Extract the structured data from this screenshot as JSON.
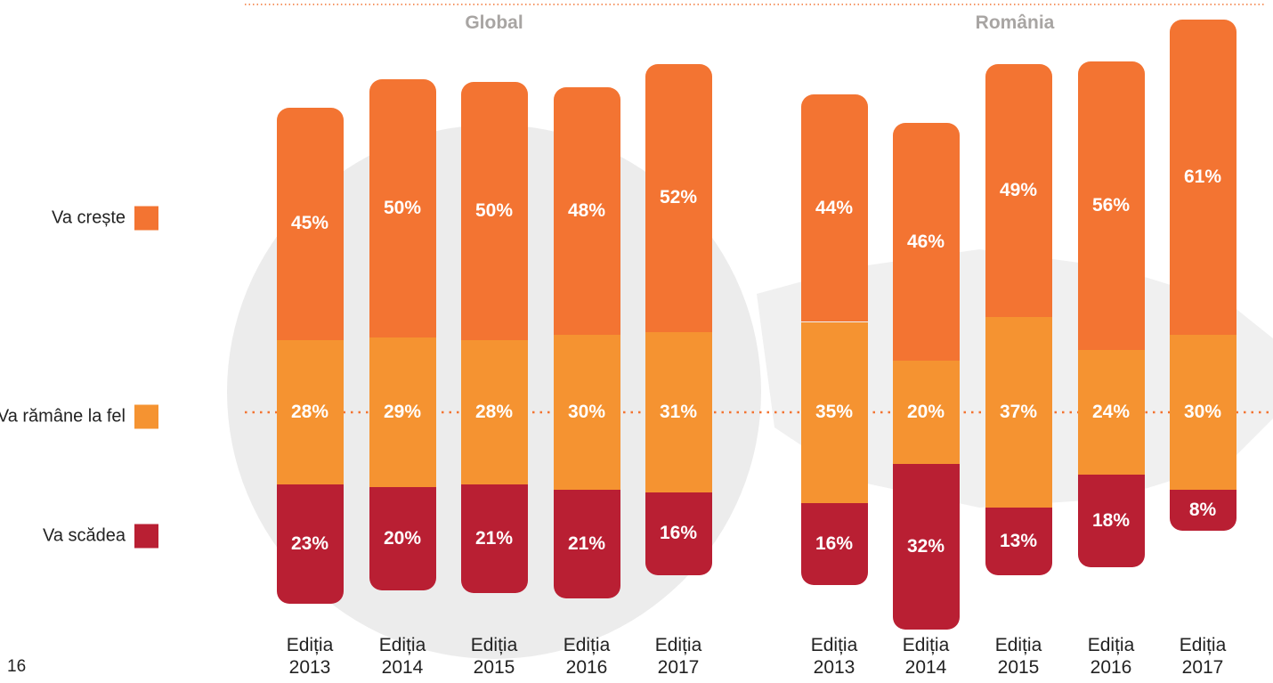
{
  "page_number": "16",
  "chart_data": [
    {
      "type": "bar",
      "stacked": true,
      "title": "Global",
      "categories": [
        "Ediția 2013",
        "Ediția 2014",
        "Ediția 2015",
        "Ediția 2016",
        "Ediția 2017"
      ],
      "series": [
        {
          "name": "Va crește",
          "color": "#f37432",
          "values": [
            45,
            50,
            50,
            48,
            52
          ],
          "value_labels": [
            "45%",
            "50%",
            "50%",
            "48%",
            "52%"
          ]
        },
        {
          "name": "Va rămâne la fel",
          "color": "#f59331",
          "values": [
            28,
            29,
            28,
            30,
            31
          ],
          "value_labels": [
            "28%",
            "29%",
            "28%",
            "30%",
            "31%"
          ]
        },
        {
          "name": "Va scădea",
          "color": "#b91f33",
          "values": [
            23,
            20,
            21,
            21,
            16
          ],
          "value_labels": [
            "23%",
            "20%",
            "21%",
            "21%",
            "16%"
          ]
        }
      ]
    },
    {
      "type": "bar",
      "stacked": true,
      "title": "România",
      "categories": [
        "Ediția 2013",
        "Ediția 2014",
        "Ediția 2015",
        "Ediția 2016",
        "Ediția 2017"
      ],
      "series": [
        {
          "name": "Va crește",
          "color": "#f37432",
          "values": [
            44,
            46,
            49,
            56,
            61
          ],
          "value_labels": [
            "44%",
            "46%",
            "49%",
            "56%",
            "61%"
          ]
        },
        {
          "name": "Va rămâne la fel",
          "color": "#f59331",
          "values": [
            35,
            20,
            37,
            24,
            30
          ],
          "value_labels": [
            "35%",
            "20%",
            "37%",
            "24%",
            "30%"
          ]
        },
        {
          "name": "Va scădea",
          "color": "#b91f33",
          "values": [
            16,
            32,
            13,
            18,
            8
          ],
          "value_labels": [
            "16%",
            "32%",
            "13%",
            "18%",
            "8%"
          ]
        }
      ]
    }
  ]
}
